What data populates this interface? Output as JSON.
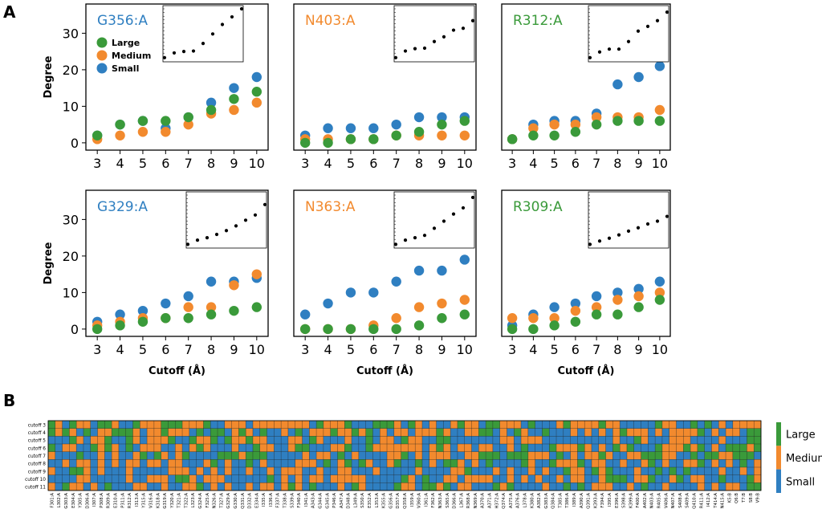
{
  "figure": {
    "panel_a_letter": "A",
    "panel_b_letter": "B",
    "ylabel": "Degree",
    "xlabel": "Cutoff (Å)"
  },
  "colors": {
    "large": "#3a9a3a",
    "medium": "#f28a2e",
    "small": "#2f7fc1"
  },
  "chart_data": [
    {
      "type": "scatter",
      "title": "G356:A",
      "title_color": "#2f7fc1",
      "x": [
        3,
        4,
        5,
        6,
        7,
        8,
        9,
        10
      ],
      "xlabel": "",
      "ylabel": "Degree",
      "ylim": [
        0,
        38
      ],
      "yticks": [
        0,
        10,
        20,
        30
      ],
      "legend": [
        "Large",
        "Medium",
        "Small"
      ],
      "legend_location": "upper-left",
      "series": [
        {
          "name": "Small",
          "values": [
            2,
            5,
            6,
            4,
            7,
            11,
            15,
            18
          ]
        },
        {
          "name": "Medium",
          "values": [
            1,
            2,
            3,
            3,
            5,
            8,
            9,
            11
          ]
        },
        {
          "name": "Large",
          "values": [
            2,
            5,
            6,
            6,
            7,
            9,
            12,
            14
          ]
        }
      ],
      "inset_values": [
        0.2,
        1.2,
        1.5,
        1.6,
        3.2,
        5.2,
        7.2,
        8.8,
        10.5
      ]
    },
    {
      "type": "scatter",
      "title": "N403:A",
      "title_color": "#f28a2e",
      "x": [
        3,
        4,
        5,
        6,
        7,
        8,
        9,
        10
      ],
      "xlabel": "",
      "ylabel": "",
      "ylim": [
        0,
        38
      ],
      "series": [
        {
          "name": "Small",
          "values": [
            2,
            4,
            4,
            4,
            5,
            7,
            7,
            7
          ]
        },
        {
          "name": "Medium",
          "values": [
            1,
            1,
            1,
            1,
            2,
            2,
            2,
            2
          ]
        },
        {
          "name": "Large",
          "values": [
            0,
            0,
            1,
            1,
            2,
            3,
            5,
            6
          ]
        }
      ],
      "inset_values": [
        0.2,
        1.6,
        2.1,
        2.2,
        3.6,
        4.6,
        6,
        6.4,
        8
      ]
    },
    {
      "type": "scatter",
      "title": "R312:A",
      "title_color": "#3a9a3a",
      "x": [
        3,
        4,
        5,
        6,
        7,
        8,
        9,
        10
      ],
      "xlabel": "",
      "ylabel": "",
      "ylim": [
        0,
        38
      ],
      "series": [
        {
          "name": "Small",
          "values": [
            1,
            5,
            6,
            6,
            8,
            16,
            18,
            21
          ]
        },
        {
          "name": "Medium",
          "values": [
            1,
            4,
            5,
            5,
            7,
            7,
            7,
            9
          ]
        },
        {
          "name": "Large",
          "values": [
            1,
            2,
            2,
            3,
            5,
            6,
            6,
            6
          ]
        }
      ],
      "inset_values": [
        0.2,
        1.4,
        2,
        2,
        3.6,
        5.8,
        6.8,
        8,
        9.8
      ]
    },
    {
      "type": "scatter",
      "title": "G329:A",
      "title_color": "#2f7fc1",
      "x": [
        3,
        4,
        5,
        6,
        7,
        8,
        9,
        10
      ],
      "xlabel": "Cutoff (Å)",
      "ylabel": "Degree",
      "ylim": [
        0,
        38
      ],
      "yticks": [
        0,
        10,
        20,
        30
      ],
      "series": [
        {
          "name": "Small",
          "values": [
            2,
            4,
            5,
            7,
            9,
            13,
            13,
            14
          ]
        },
        {
          "name": "Medium",
          "values": [
            1,
            2,
            3,
            3,
            6,
            6,
            12,
            15
          ]
        },
        {
          "name": "Large",
          "values": [
            0,
            1,
            2,
            3,
            3,
            4,
            5,
            6
          ]
        }
      ],
      "inset_values": [
        0.1,
        1,
        1.5,
        2.2,
        3,
        4,
        5.2,
        6.3,
        8.5
      ]
    },
    {
      "type": "scatter",
      "title": "N363:A",
      "title_color": "#f28a2e",
      "x": [
        3,
        4,
        5,
        6,
        7,
        8,
        9,
        10
      ],
      "xlabel": "Cutoff (Å)",
      "ylabel": "",
      "ylim": [
        0,
        38
      ],
      "series": [
        {
          "name": "Small",
          "values": [
            4,
            7,
            10,
            10,
            13,
            16,
            16,
            19
          ]
        },
        {
          "name": "Medium",
          "values": [
            0,
            0,
            0,
            1,
            3,
            6,
            7,
            8
          ]
        },
        {
          "name": "Large",
          "values": [
            0,
            0,
            0,
            0,
            0,
            1,
            3,
            4
          ]
        }
      ],
      "inset_values": [
        0.1,
        1,
        1.5,
        2,
        3.5,
        5,
        6.5,
        7.8,
        10
      ]
    },
    {
      "type": "scatter",
      "title": "R309:A",
      "title_color": "#3a9a3a",
      "x": [
        3,
        4,
        5,
        6,
        7,
        8,
        9,
        10
      ],
      "xlabel": "Cutoff (Å)",
      "ylabel": "",
      "ylim": [
        0,
        38
      ],
      "series": [
        {
          "name": "Small",
          "values": [
            1,
            4,
            6,
            7,
            9,
            10,
            11,
            13
          ]
        },
        {
          "name": "Medium",
          "values": [
            3,
            3,
            3,
            5,
            6,
            8,
            9,
            10
          ]
        },
        {
          "name": "Large",
          "values": [
            0,
            0,
            1,
            2,
            4,
            4,
            6,
            8
          ]
        }
      ],
      "inset_values": [
        0.1,
        0.8,
        1.4,
        2.1,
        2.9,
        3.6,
        4.4,
        5,
        6
      ]
    },
    {
      "type": "heatmap",
      "title": "",
      "row_labels": [
        "cutoff 3",
        "cutoff 4",
        "cutoff 5",
        "cutoff 6",
        "cutoff 7",
        "cutoff 8",
        "cutoff 9",
        "cutoff 10",
        "cutoff 11"
      ],
      "column_labels": [
        "F301:A",
        "L302:A",
        "G303:A",
        "E304:A",
        "Y305:A",
        "D306:A",
        "I307:A",
        "P308:A",
        "R309:A",
        "E310:A",
        "P311:A",
        "R312:A",
        "I313:A",
        "Y315:A",
        "V316:A",
        "K318:A",
        "G319:A",
        "Y320:A",
        "T321:A",
        "T322:A",
        "L323:A",
        "G324:A",
        "F325:A",
        "N326:A",
        "T327:A",
        "G329:A",
        "G330:A",
        "Q331:A",
        "D332:A",
        "E334:A",
        "I335:A",
        "I336:A",
        "F337:A",
        "T338:A",
        "S339:A",
        "F340:A",
        "I341:A",
        "A343:A",
        "G344:A",
        "G345:A",
        "P346:A",
        "A347:A",
        "D348:A",
        "L349:A",
        "S350:A",
        "E352:A",
        "L353:A",
        "K355:A",
        "G356:A",
        "D357:A",
        "Q358:A",
        "I359:A",
        "V360:A",
        "I361:A",
        "F362:A",
        "N363:A",
        "S365:A",
        "D366:A",
        "L367:A",
        "R368:A",
        "N369:A",
        "A370:A",
        "A371:A",
        "H372:A",
        "Q374:A",
        "A375:A",
        "A376:A",
        "L378:A",
        "K380:A",
        "A382:A",
        "G383:A",
        "Q384:A",
        "T385:A",
        "T386:A",
        "I389:A",
        "A390:A",
        "Q391:A",
        "K393:A",
        "F394:A",
        "I395:A",
        "E396:A",
        "S398:A",
        "K399:A",
        "F400:A",
        "A402:A",
        "N403:A",
        "R405:A",
        "V406:A",
        "N407:A",
        "S408:A",
        "S409:A",
        "Q410:A",
        "R411:A",
        "I412:A",
        "T414:A",
        "N415:A",
        "K5:B",
        "Q6:B",
        "T7:B",
        "S8:B",
        "V9:B"
      ],
      "categories": [
        "Large",
        "Medium",
        "Small"
      ],
      "colorbar_location": "right"
    }
  ]
}
